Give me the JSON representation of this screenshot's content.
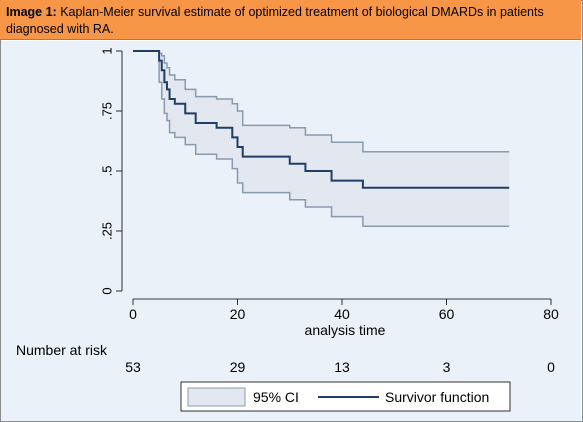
{
  "caption": {
    "label": "Image 1:",
    "text": " Kaplan-Meier survival estimate of optimized treatment of biological DMARDs in patients diagnosed with RA."
  },
  "chart_data": {
    "type": "line",
    "xlabel": "analysis time",
    "ylabel": "",
    "xlim": [
      0,
      80
    ],
    "ylim": [
      0,
      1
    ],
    "x_ticks": [
      "0",
      "20",
      "40",
      "60",
      "80"
    ],
    "y_ticks": [
      "0",
      ".25",
      ".5",
      ".75",
      "1"
    ],
    "x_tick_values": [
      0,
      20,
      40,
      60,
      80
    ],
    "y_tick_values": [
      0,
      0.25,
      0.5,
      0.75,
      1
    ],
    "grid": false,
    "legend_position": "bottom",
    "series": [
      {
        "name": "Survivor function",
        "kind": "step",
        "color": "#1f3f66",
        "x": [
          0,
          5,
          5.5,
          6,
          6.5,
          7,
          8,
          10,
          12,
          16,
          19,
          20,
          21,
          30,
          33,
          38,
          44,
          72
        ],
        "y": [
          1,
          0.96,
          0.92,
          0.87,
          0.84,
          0.8,
          0.78,
          0.74,
          0.7,
          0.68,
          0.64,
          0.6,
          0.56,
          0.53,
          0.5,
          0.46,
          0.43,
          0.43
        ]
      },
      {
        "name": "95% CI",
        "kind": "band",
        "color": "#e2e7f0",
        "edge_color": "#8a9bb0",
        "x": [
          0,
          5,
          5.5,
          6,
          6.5,
          7,
          8,
          10,
          12,
          16,
          19,
          20,
          21,
          30,
          33,
          38,
          44,
          72
        ],
        "upper": [
          1,
          0.99,
          0.98,
          0.95,
          0.93,
          0.9,
          0.88,
          0.84,
          0.81,
          0.8,
          0.78,
          0.75,
          0.69,
          0.68,
          0.65,
          0.62,
          0.58,
          0.58
        ],
        "lower": [
          1,
          0.87,
          0.8,
          0.74,
          0.71,
          0.66,
          0.64,
          0.61,
          0.57,
          0.55,
          0.51,
          0.45,
          0.41,
          0.38,
          0.35,
          0.31,
          0.27,
          0.27
        ]
      }
    ],
    "risk_table": {
      "label": "Number at risk",
      "times": [
        0,
        20,
        40,
        60,
        80
      ],
      "values": [
        "53",
        "29",
        "13",
        "3",
        "0"
      ]
    },
    "legend": [
      "95% CI",
      "Survivor function"
    ]
  },
  "colors": {
    "caption_bg": "#f79646",
    "plot_bg": "#eaf1f8",
    "line": "#1f3f66",
    "band_fill": "#e2e7f0",
    "band_edge": "#8a9bb0"
  }
}
